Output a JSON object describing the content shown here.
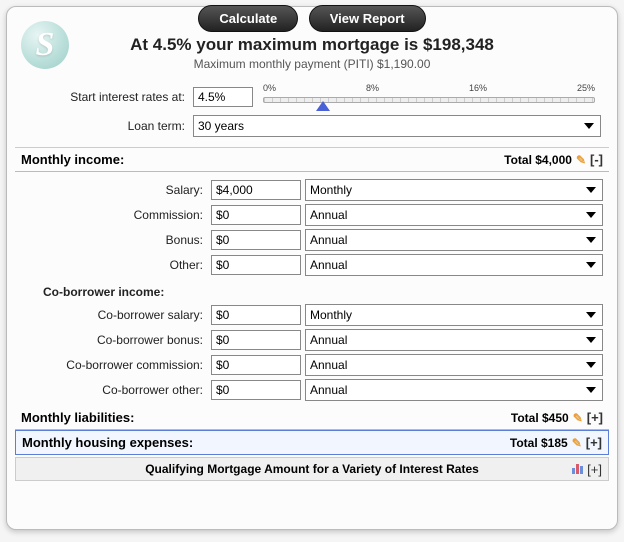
{
  "buttons": {
    "calculate": "Calculate",
    "view_report": "View Report"
  },
  "logo_glyph": "S",
  "headline": "At 4.5% your maximum mortgage is $198,348",
  "subhead": "Maximum monthly payment (PITI) $1,190.00",
  "config": {
    "rate_label": "Start interest rates at:",
    "rate_value": "4.5%",
    "slider": {
      "ticks": [
        "0%",
        "8%",
        "16%",
        "25%"
      ],
      "min": 0,
      "max": 25,
      "value": 4.5,
      "thumb_color": "#4a62d6"
    },
    "term_label": "Loan term:",
    "term_value": "30 years"
  },
  "income_section": {
    "title": "Monthly income:",
    "total_label": "Total $4,000",
    "toggle": "[-]",
    "rows": [
      {
        "label": "Salary:",
        "value": "$4,000",
        "freq": "Monthly"
      },
      {
        "label": "Commission:",
        "value": "$0",
        "freq": "Annual"
      },
      {
        "label": "Bonus:",
        "value": "$0",
        "freq": "Annual"
      },
      {
        "label": "Other:",
        "value": "$0",
        "freq": "Annual"
      }
    ],
    "co_title": "Co-borrower income:",
    "co_rows": [
      {
        "label": "Co-borrower salary:",
        "value": "$0",
        "freq": "Monthly"
      },
      {
        "label": "Co-borrower bonus:",
        "value": "$0",
        "freq": "Annual"
      },
      {
        "label": "Co-borrower commission:",
        "value": "$0",
        "freq": "Annual"
      },
      {
        "label": "Co-borrower other:",
        "value": "$0",
        "freq": "Annual"
      }
    ]
  },
  "liabilities": {
    "title": "Monthly liabilities:",
    "total": "Total $450",
    "toggle": "[+]"
  },
  "housing": {
    "title": "Monthly housing expenses:",
    "total": "Total $185",
    "toggle": "[+]"
  },
  "footer": {
    "title": "Qualifying Mortgage Amount for a Variety of Interest Rates",
    "toggle": "[+]"
  }
}
